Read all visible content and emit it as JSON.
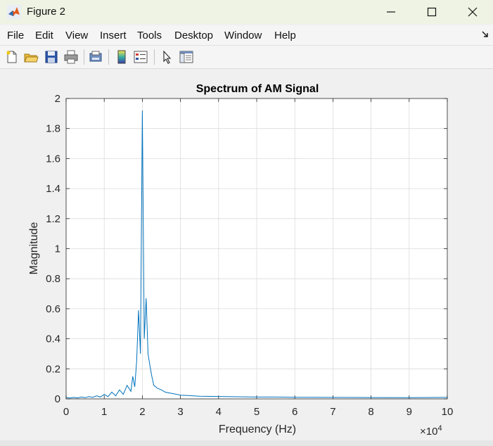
{
  "window": {
    "title": "Figure 2",
    "app_icon": "matlab-icon"
  },
  "menu": {
    "items": [
      "File",
      "Edit",
      "View",
      "Insert",
      "Tools",
      "Desktop",
      "Window",
      "Help"
    ]
  },
  "toolbar": {
    "icons": [
      "new-figure-icon",
      "open-file-icon",
      "save-icon",
      "print-icon",
      "link-plot-icon",
      "colorbar-icon",
      "legend-icon",
      "edit-plot-icon",
      "property-inspector-icon"
    ]
  },
  "chart_data": {
    "type": "line",
    "title": "Spectrum of AM Signal",
    "xlabel": "Frequency (Hz)",
    "ylabel": "Magnitude",
    "x_exponent_label": "×10",
    "x_exponent_power": "4",
    "xlim": [
      0,
      100000
    ],
    "ylim": [
      0,
      2
    ],
    "xtick_labels": [
      "0",
      "1",
      "2",
      "3",
      "4",
      "5",
      "6",
      "7",
      "8",
      "9",
      "10"
    ],
    "ytick_labels": [
      "0",
      "0.2",
      "0.4",
      "0.6",
      "0.8",
      "1",
      "1.2",
      "1.4",
      "1.6",
      "1.8",
      "2"
    ],
    "grid": true,
    "series_color": "#0072bd",
    "series": [
      {
        "x": [
          0,
          1000,
          2000,
          3000,
          4000,
          5000,
          6000,
          7000,
          8000,
          9000,
          10000,
          11000,
          12000,
          13000,
          14000,
          15000,
          16000,
          17000,
          17500,
          18000,
          18500,
          19000,
          19500,
          20000,
          20500,
          21000,
          21500,
          22000,
          22500,
          23000,
          24000,
          25000,
          26000,
          27000,
          28000,
          29000,
          30000,
          32000,
          35000,
          40000,
          45000,
          50000,
          55000,
          60000,
          70000,
          80000,
          90000,
          100000
        ],
        "y": [
          0.01,
          0.005,
          0.01,
          0.006,
          0.012,
          0.008,
          0.015,
          0.01,
          0.02,
          0.012,
          0.03,
          0.015,
          0.045,
          0.02,
          0.06,
          0.03,
          0.09,
          0.05,
          0.15,
          0.08,
          0.25,
          0.59,
          0.3,
          1.92,
          0.4,
          0.67,
          0.3,
          0.22,
          0.15,
          0.09,
          0.07,
          0.06,
          0.045,
          0.04,
          0.035,
          0.03,
          0.025,
          0.022,
          0.018,
          0.016,
          0.014,
          0.012,
          0.012,
          0.011,
          0.01,
          0.009,
          0.008,
          0.01
        ]
      }
    ]
  }
}
